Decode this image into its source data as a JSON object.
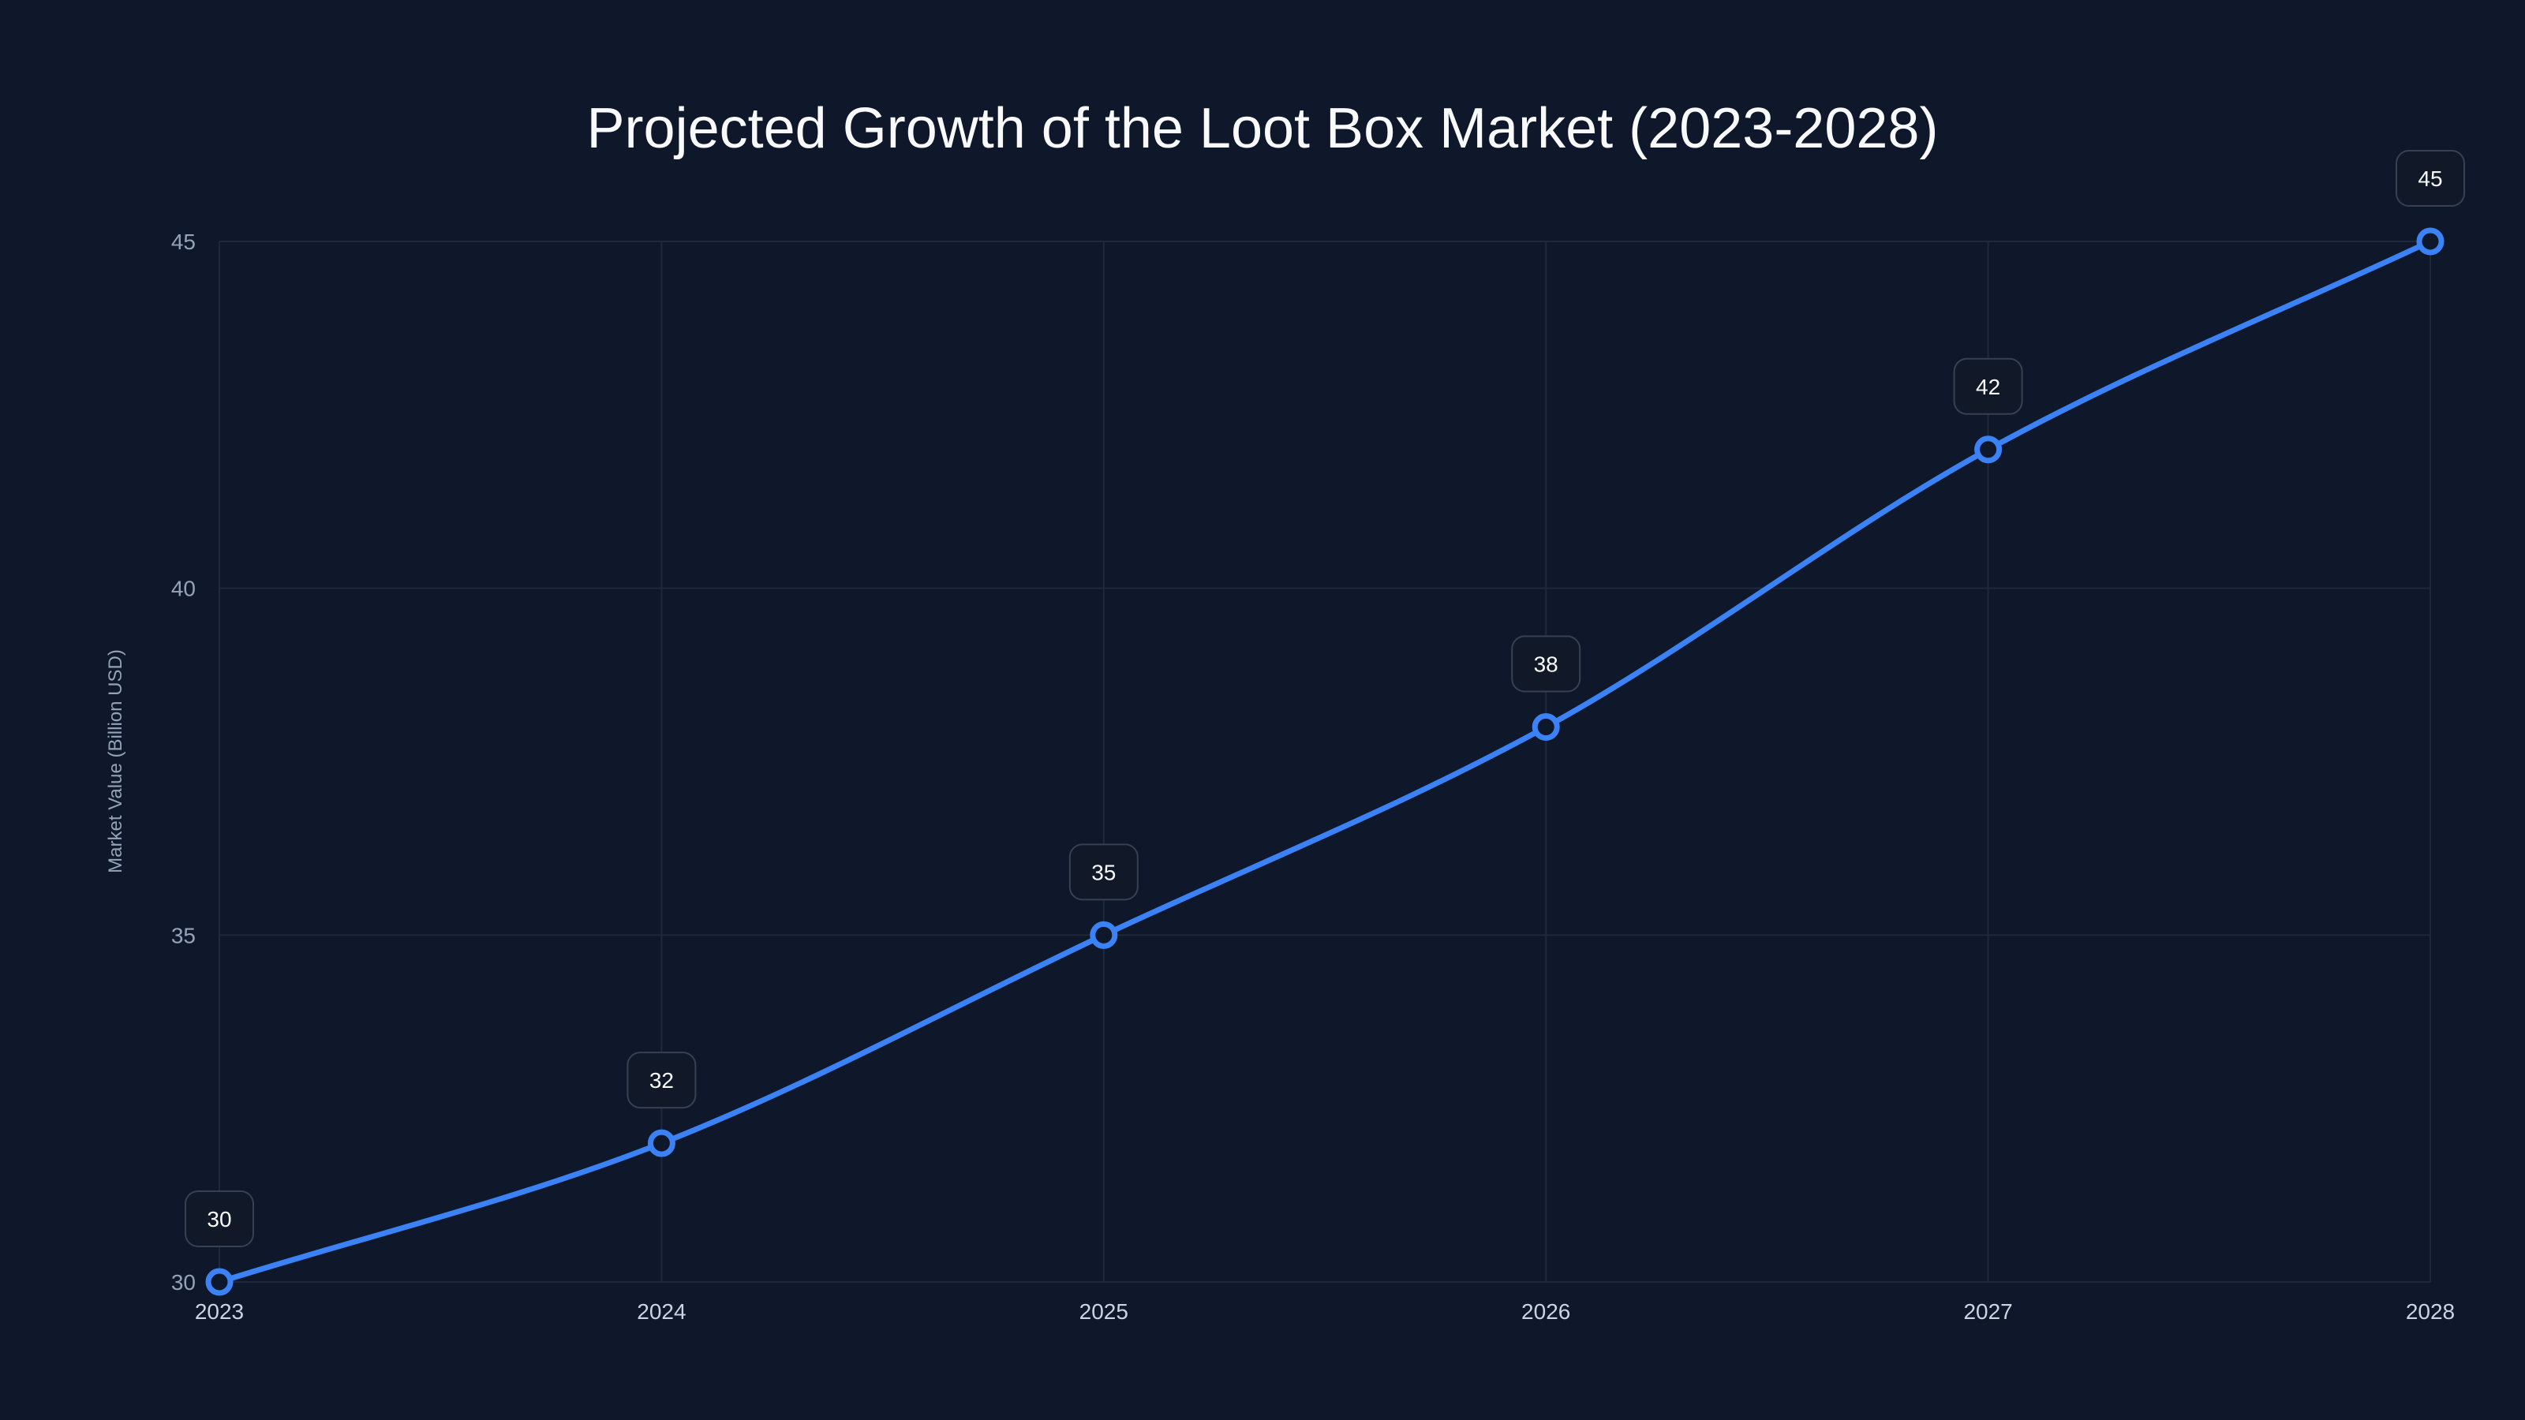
{
  "chart_data": {
    "type": "line",
    "title": "Projected Growth of the Loot Box Market (2023-2028)",
    "xlabel": "",
    "ylabel": "Market Value (Billion USD)",
    "categories": [
      "2023",
      "2024",
      "2025",
      "2026",
      "2027",
      "2028"
    ],
    "series": [
      {
        "name": "Market Value",
        "values": [
          30,
          32,
          35,
          38,
          42,
          45
        ],
        "color": "#3b82f6"
      }
    ],
    "ylim": [
      30,
      45
    ],
    "yticks": [
      "30",
      "35",
      "40",
      "45"
    ],
    "grid": true,
    "data_labels": [
      "30",
      "32",
      "35",
      "38",
      "42",
      "45"
    ]
  }
}
